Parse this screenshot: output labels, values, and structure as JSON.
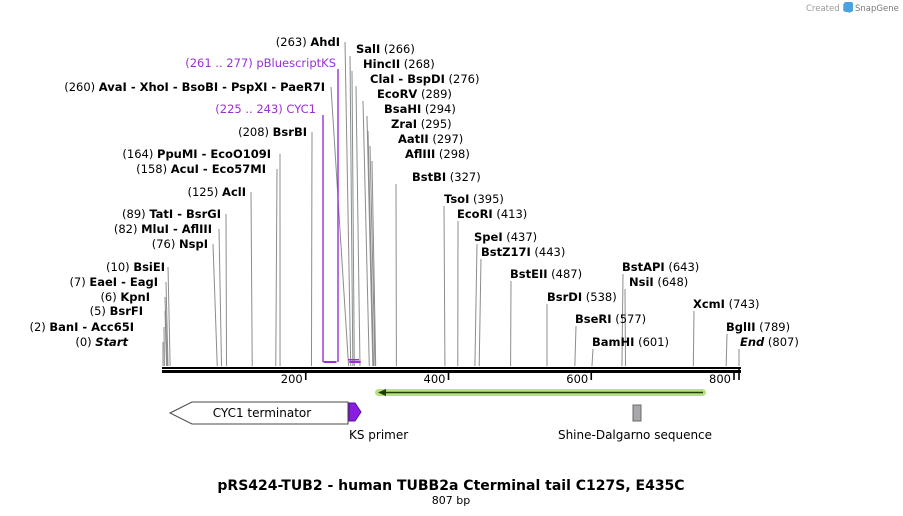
{
  "header": {
    "created_by": "Created by",
    "brand": "SnapGene"
  },
  "map": {
    "title": "pRS424-TUB2 - human TUBB2a Cterminal tail C127S, E435C",
    "length_label": "807 bp",
    "length_bp": 807,
    "ticks": [
      {
        "pos": 200,
        "label": "200"
      },
      {
        "pos": 400,
        "label": "400"
      },
      {
        "pos": 600,
        "label": "600"
      },
      {
        "pos": 800,
        "label": "800"
      }
    ]
  },
  "colors": {
    "feature_purple": "#9b2fd6",
    "primer_purple": "#8a1ee0",
    "orf_green": "#b7e27a",
    "site_gray": "#8c8c8c"
  },
  "left_sites": [
    {
      "pos": 0,
      "num": "(0)",
      "name": "Start",
      "italic": true
    },
    {
      "pos": 2,
      "num": "(2)",
      "name": "BanI  -  Acc65I"
    },
    {
      "pos": 5,
      "num": "(5)",
      "name": "BsrFI"
    },
    {
      "pos": 6,
      "num": "(6)",
      "name": "KpnI"
    },
    {
      "pos": 7,
      "num": "(7)",
      "name": "EaeI  -  EagI"
    },
    {
      "pos": 10,
      "num": "(10)",
      "name": "BsiEI"
    },
    {
      "pos": 76,
      "num": "(76)",
      "name": "NspI"
    },
    {
      "pos": 82,
      "num": "(82)",
      "name": "MluI  -  AflIII"
    },
    {
      "pos": 89,
      "num": "(89)",
      "name": "TatI  -  BsrGI"
    },
    {
      "pos": 125,
      "num": "(125)",
      "name": "AclI"
    },
    {
      "pos": 158,
      "num": "(158)",
      "name": "AcuI  -  Eco57MI"
    },
    {
      "pos": 164,
      "num": "(164)",
      "name": "PpuMI  -  EcoO109I"
    },
    {
      "pos": 208,
      "num": "(208)",
      "name": "BsrBI"
    },
    {
      "pos": 260,
      "num": "(260)",
      "name": "AvaI  -  XhoI  -  BsoBI  -  PspXI  -  PaeR7I"
    },
    {
      "pos": 263,
      "num": "(263)",
      "name": "AhdI"
    }
  ],
  "right_sites": [
    {
      "pos": 266,
      "num": "(266)",
      "name": "SalI"
    },
    {
      "pos": 268,
      "num": "(268)",
      "name": "HincII"
    },
    {
      "pos": 276,
      "num": "(276)",
      "name": "ClaI  -  BspDI"
    },
    {
      "pos": 289,
      "num": "(289)",
      "name": "EcoRV"
    },
    {
      "pos": 294,
      "num": "(294)",
      "name": "BsaHI"
    },
    {
      "pos": 295,
      "num": "(295)",
      "name": "ZraI"
    },
    {
      "pos": 297,
      "num": "(297)",
      "name": "AatII"
    },
    {
      "pos": 298,
      "num": "(298)",
      "name": "AflIII"
    },
    {
      "pos": 327,
      "num": "(327)",
      "name": "BstBI"
    },
    {
      "pos": 395,
      "num": "(395)",
      "name": "TsoI"
    },
    {
      "pos": 413,
      "num": "(413)",
      "name": "EcoRI"
    },
    {
      "pos": 437,
      "num": "(437)",
      "name": "SpeI"
    },
    {
      "pos": 443,
      "num": "(443)",
      "name": "BstZ17I"
    },
    {
      "pos": 487,
      "num": "(487)",
      "name": "BstEII"
    },
    {
      "pos": 538,
      "num": "(538)",
      "name": "BsrDI"
    },
    {
      "pos": 577,
      "num": "(577)",
      "name": "BseRI"
    },
    {
      "pos": 601,
      "num": "(601)",
      "name": "BamHI"
    },
    {
      "pos": 643,
      "num": "(643)",
      "name": "BstAPI"
    },
    {
      "pos": 648,
      "num": "(648)",
      "name": "NsiI"
    },
    {
      "pos": 743,
      "num": "(743)",
      "name": "XcmI"
    },
    {
      "pos": 789,
      "num": "(789)",
      "name": "BglII"
    },
    {
      "pos": 807,
      "num": "(807)",
      "name": "End",
      "italic": true
    }
  ],
  "top_features": [
    {
      "name": "pBluescriptKS",
      "range": "(261 .. 277)",
      "start": 261,
      "end": 277
    },
    {
      "name": "CYC1",
      "range": "(225 .. 243)",
      "start": 225,
      "end": 243
    }
  ],
  "features": [
    {
      "name": "CYC1 terminator",
      "start": 1,
      "end": 261,
      "direction": "reverse"
    },
    {
      "name": "KS primer",
      "start": 261,
      "end": 277,
      "direction": "forward"
    },
    {
      "name": "Shine-Dalgarno sequence",
      "start": 660,
      "end": 670
    },
    {
      "name": "ORF",
      "start": 301,
      "end": 760,
      "direction": "reverse"
    }
  ]
}
